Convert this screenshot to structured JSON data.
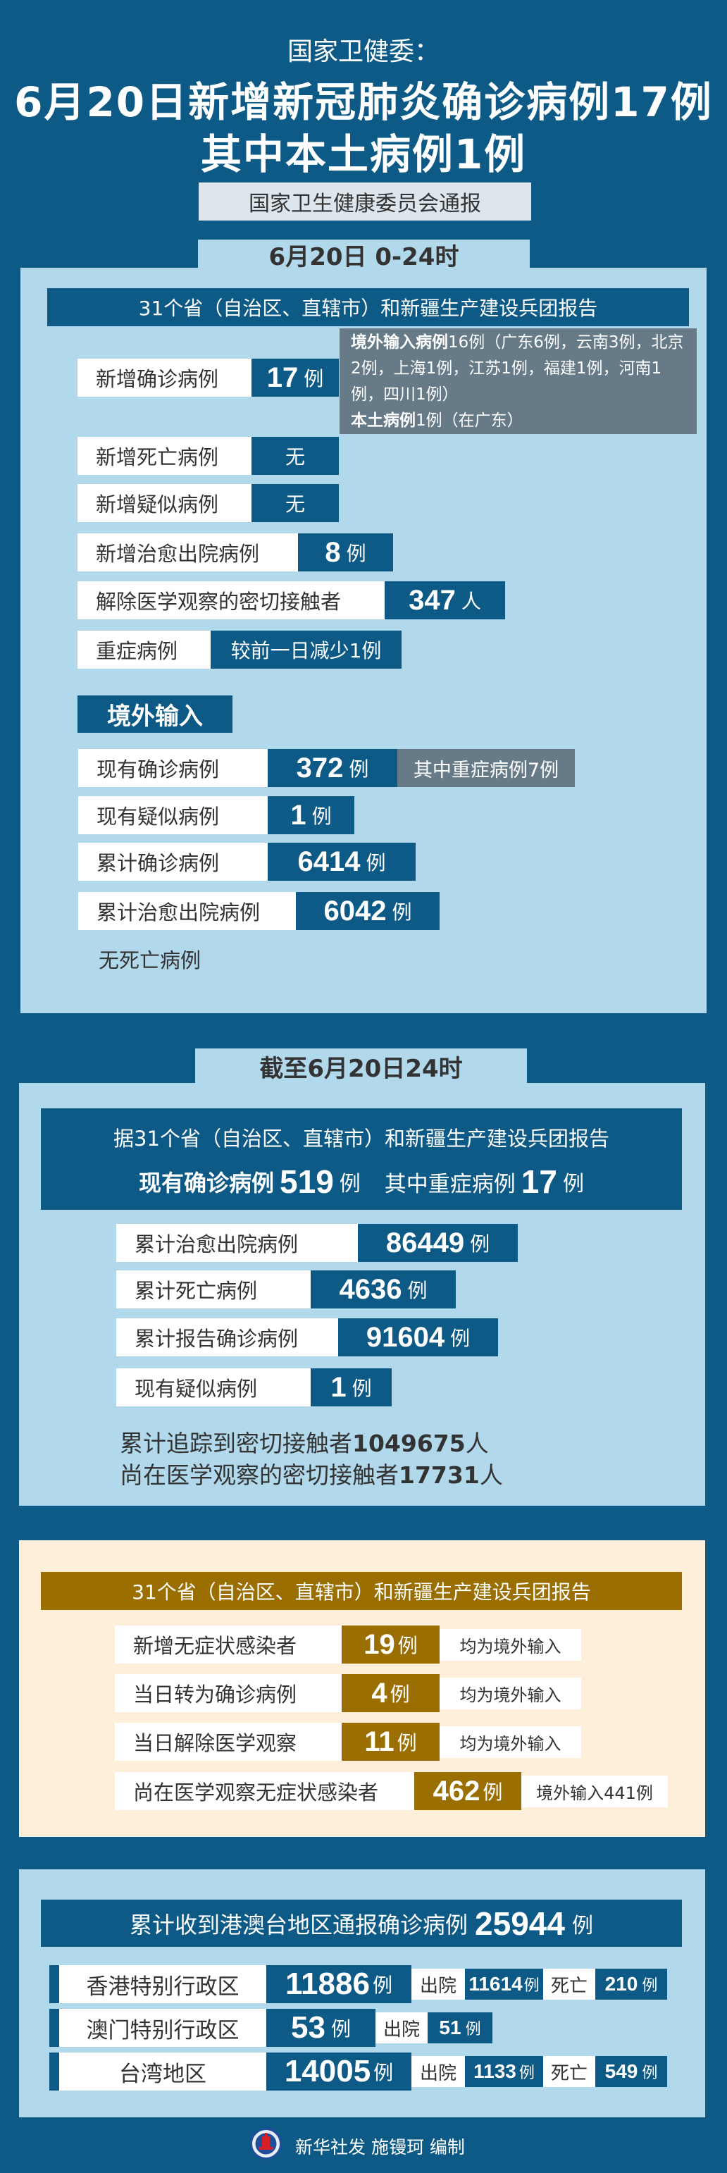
{
  "header": {
    "subtitle": "国家卫健委：",
    "title_line1": "6月20日新增新冠肺炎确诊病例17例",
    "title_line2": "其中本土病例1例",
    "source": "国家卫生健康委员会通报"
  },
  "section1": {
    "tab": "6月20日  0-24时",
    "report_header": "31个省（自治区、直辖市）和新疆生产建设兵团报告",
    "note": {
      "imported_label": "境外输入病例",
      "imported_text": "16例（广东6例，云南3例，北京2例，上海1例，江苏1例，福建1例，河南1例，四川1例）",
      "local_label": "本土病例",
      "local_text": "1例（在广东）"
    },
    "rows": [
      {
        "label": "新增确诊病例",
        "value": "17",
        "unit": "例"
      },
      {
        "label": "新增死亡病例",
        "value": "无",
        "unit": ""
      },
      {
        "label": "新增疑似病例",
        "value": "无",
        "unit": ""
      },
      {
        "label": "新增治愈出院病例",
        "value": "8",
        "unit": "例"
      },
      {
        "label": "解除医学观察的密切接触者",
        "value": "347",
        "unit": "人"
      },
      {
        "label": "重症病例",
        "value": "较前一日减少1例",
        "unit": ""
      }
    ],
    "imported_heading": "境外输入",
    "imported_rows": [
      {
        "label": "现有确诊病例",
        "value": "372",
        "unit": "例",
        "extra": "其中重症病例7例"
      },
      {
        "label": "现有疑似病例",
        "value": "1",
        "unit": "例"
      },
      {
        "label": "累计确诊病例",
        "value": "6414",
        "unit": "例"
      },
      {
        "label": "累计治愈出院病例",
        "value": "6042",
        "unit": "例"
      }
    ],
    "no_death": "无死亡病例"
  },
  "section2": {
    "tab": "截至6月20日24时",
    "header_line1": "据31个省（自治区、直辖市）和新疆生产建设兵团报告",
    "current_label": "现有确诊病例",
    "current_value": "519",
    "current_unit": "例",
    "severe_label": "其中重症病例",
    "severe_value": "17",
    "severe_unit": "例",
    "rows": [
      {
        "label": "累计治愈出院病例",
        "value": "86449",
        "unit": "例"
      },
      {
        "label": "累计死亡病例",
        "value": "4636",
        "unit": "例"
      },
      {
        "label": "累计报告确诊病例",
        "value": "91604",
        "unit": "例"
      },
      {
        "label": "现有疑似病例",
        "value": "1",
        "unit": "例"
      }
    ],
    "traced": {
      "label": "累计追踪到密切接触者",
      "value": "1049675",
      "unit": "人"
    },
    "observed": {
      "label": "尚在医学观察的密切接触者",
      "value": "17731",
      "unit": "人"
    }
  },
  "section3": {
    "header": "31个省（自治区、直辖市）和新疆生产建设兵团报告",
    "rows": [
      {
        "label": "新增无症状感染者",
        "value": "19",
        "unit": "例",
        "note": "均为境外输入"
      },
      {
        "label": "当日转为确诊病例",
        "value": "4",
        "unit": "例",
        "note": "均为境外输入"
      },
      {
        "label": "当日解除医学观察",
        "value": "11",
        "unit": "例",
        "note": "均为境外输入"
      },
      {
        "label": "尚在医学观察无症状感染者",
        "value": "462",
        "unit": "例",
        "note": "境外输入441例"
      }
    ]
  },
  "section4": {
    "header_label": "累计收到港澳台地区通报确诊病例",
    "header_value": "25944",
    "header_unit": "例",
    "regions": [
      {
        "name": "香港特别行政区",
        "value": "11886",
        "unit": "例",
        "discharged_label": "出院",
        "discharged": "11614",
        "deaths_label": "死亡",
        "deaths": "210"
      },
      {
        "name": "澳门特别行政区",
        "value": "53",
        "unit": "例",
        "discharged_label": "出院",
        "discharged": "51"
      },
      {
        "name": "台湾地区",
        "value": "14005",
        "unit": "例",
        "discharged_label": "出院",
        "discharged": "1133",
        "deaths_label": "死亡",
        "deaths": "549"
      }
    ]
  },
  "footer": {
    "credit": "新华社发 施镘珂 编制"
  },
  "colors": {
    "background": "#0d5a87",
    "panel": "#b2d8ec",
    "note_gray": "#667a87",
    "gold": "#9a6e00",
    "cream": "#fdefd9"
  }
}
